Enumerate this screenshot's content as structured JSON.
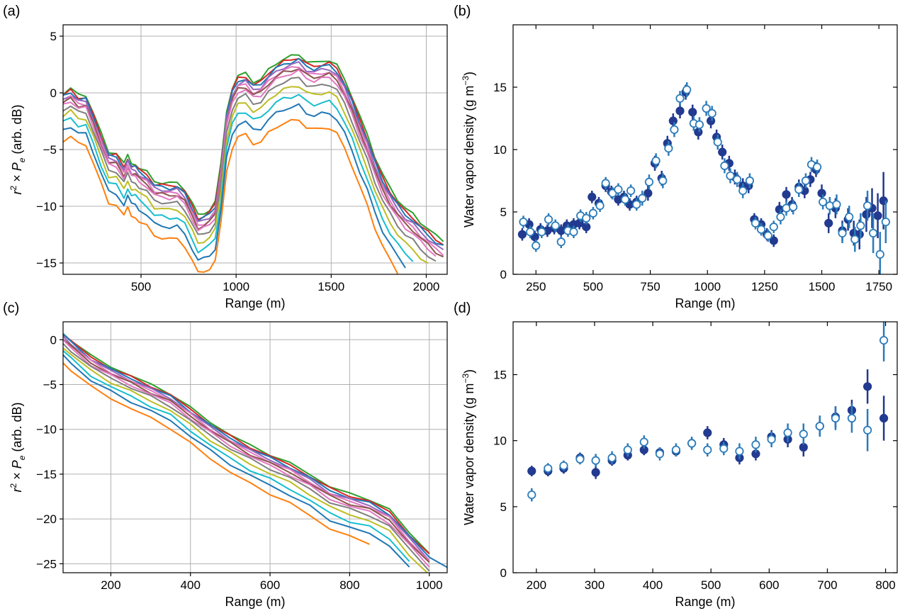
{
  "chart_data": [
    {
      "panel": "(a)",
      "type": "line",
      "xlabel": "Range (m)",
      "ylabel": "r² × P_e (arb. dB)",
      "xlim": [
        90,
        2110
      ],
      "ylim": [
        -16,
        6
      ],
      "xticks": [
        500,
        1000,
        1500,
        2000
      ],
      "yticks": [
        5,
        0,
        -5,
        -10,
        -15
      ],
      "grid": true,
      "base_x": [
        90,
        130,
        170,
        210,
        250,
        290,
        330,
        370,
        410,
        430,
        450,
        470,
        490,
        530,
        570,
        610,
        650,
        690,
        730,
        770,
        800,
        830,
        860,
        890,
        920,
        950,
        980,
        1010,
        1050,
        1090,
        1130,
        1170,
        1210,
        1250,
        1290,
        1330,
        1370,
        1410,
        1450,
        1490,
        1530,
        1570,
        1610,
        1650,
        1690,
        1730,
        1770,
        1810,
        1850,
        1890,
        1930,
        1970,
        2010,
        2050,
        2090
      ],
      "base_y": [
        0,
        0.4,
        -0.2,
        -0.2,
        -1.8,
        -3.6,
        -5.2,
        -5.3,
        -6.3,
        -5.5,
        -6.2,
        -6.2,
        -6.6,
        -7.0,
        -7.8,
        -7.9,
        -8.0,
        -7.9,
        -8.5,
        -9.8,
        -10.8,
        -10.6,
        -10.3,
        -9.6,
        -6.3,
        -1.6,
        0.5,
        1.5,
        1.7,
        1.0,
        1.2,
        2.0,
        2.6,
        3.0,
        3.2,
        3.4,
        2.8,
        2.6,
        2.8,
        2.9,
        2.4,
        1.2,
        -0.3,
        -2.1,
        -3.7,
        -5.6,
        -7.2,
        -8.4,
        -9.4,
        -10.2,
        -10.7,
        -11.4,
        -12.0,
        -12.6,
        -13.0
      ],
      "series": [
        {
          "color": "#2ca02c",
          "offset": 0.0,
          "end": 2110
        },
        {
          "color": "#d62728",
          "offset": -0.2,
          "end": 2110
        },
        {
          "color": "#1f77b4",
          "offset": -0.35,
          "end": 2110
        },
        {
          "color": "#9467bd",
          "offset": -0.55,
          "end": 2090
        },
        {
          "color": "#e377c2",
          "offset": -0.75,
          "end": 2110
        },
        {
          "color": "#8c564b",
          "offset": -0.9,
          "end": 2100
        },
        {
          "color": "#e377c2",
          "offset": -1.1,
          "end": 2080
        },
        {
          "color": "#7f7f7f",
          "offset": -1.5,
          "end": 2050
        },
        {
          "color": "#bcbd22",
          "offset": -2.0,
          "end": 2020
        },
        {
          "color": "#17becf",
          "offset": -2.6,
          "end": 1960
        },
        {
          "color": "#1f77b4",
          "offset": -3.3,
          "end": 1890
        },
        {
          "color": "#ff7f0e",
          "offset": -4.2,
          "end": 1870
        }
      ]
    },
    {
      "panel": "(b)",
      "type": "scatter",
      "xlabel": "Range (m)",
      "ylabel": "Water vapor density (g m⁻³)",
      "xlim": [
        150,
        1830
      ],
      "ylim": [
        0,
        20
      ],
      "xticks": [
        250,
        500,
        750,
        1000,
        1250,
        1500,
        1750
      ],
      "yticks": [
        0,
        5,
        10,
        15
      ],
      "grid": false,
      "filled_points": [
        [
          190,
          3.2,
          0.5
        ],
        [
          220,
          4.0,
          0.5
        ],
        [
          245,
          3.0,
          0.5
        ],
        [
          270,
          3.6,
          0.5
        ],
        [
          300,
          3.5,
          0.5
        ],
        [
          330,
          3.7,
          0.5
        ],
        [
          360,
          3.5,
          0.5
        ],
        [
          385,
          3.9,
          0.5
        ],
        [
          415,
          4.0,
          0.5
        ],
        [
          440,
          4.1,
          0.5
        ],
        [
          470,
          3.8,
          0.5
        ],
        [
          495,
          6.2,
          0.5
        ],
        [
          525,
          5.7,
          0.5
        ],
        [
          555,
          7.1,
          0.5
        ],
        [
          580,
          6.6,
          0.5
        ],
        [
          610,
          6.0,
          0.5
        ],
        [
          635,
          6.2,
          0.5
        ],
        [
          660,
          5.6,
          0.5
        ],
        [
          690,
          5.8,
          0.5
        ],
        [
          740,
          6.5,
          0.6
        ],
        [
          770,
          8.9,
          0.6
        ],
        [
          800,
          7.7,
          0.6
        ],
        [
          825,
          10.5,
          0.6
        ],
        [
          850,
          12.3,
          0.6
        ],
        [
          880,
          13.1,
          0.6
        ],
        [
          905,
          14.6,
          0.6
        ],
        [
          935,
          13.0,
          0.6
        ],
        [
          960,
          11.4,
          0.6
        ],
        [
          1015,
          12.3,
          0.6
        ],
        [
          1040,
          11.0,
          0.6
        ],
        [
          1065,
          9.8,
          0.6
        ],
        [
          1095,
          8.9,
          0.6
        ],
        [
          1120,
          7.8,
          0.6
        ],
        [
          1155,
          7.1,
          0.6
        ],
        [
          1180,
          7.1,
          0.6
        ],
        [
          1205,
          4.4,
          0.5
        ],
        [
          1235,
          4.0,
          0.5
        ],
        [
          1260,
          3.2,
          0.5
        ],
        [
          1290,
          2.7,
          0.5
        ],
        [
          1315,
          5.2,
          0.6
        ],
        [
          1345,
          6.4,
          0.6
        ],
        [
          1370,
          5.6,
          0.6
        ],
        [
          1400,
          7.0,
          0.6
        ],
        [
          1425,
          6.7,
          0.6
        ],
        [
          1450,
          7.6,
          0.6
        ],
        [
          1475,
          8.4,
          0.6
        ],
        [
          1500,
          6.5,
          0.7
        ],
        [
          1530,
          4.1,
          0.8
        ],
        [
          1560,
          5.3,
          0.8
        ],
        [
          1590,
          3.5,
          0.8
        ],
        [
          1615,
          4.4,
          0.9
        ],
        [
          1640,
          3.3,
          1.0
        ],
        [
          1665,
          3.2,
          1.2
        ],
        [
          1695,
          4.8,
          1.4
        ],
        [
          1720,
          5.3,
          1.6
        ],
        [
          1745,
          4.7,
          1.8
        ],
        [
          1770,
          5.9,
          2.3
        ]
      ],
      "open_points": [
        [
          195,
          4.2,
          0.5
        ],
        [
          225,
          3.4,
          0.5
        ],
        [
          250,
          2.3,
          0.5
        ],
        [
          275,
          3.4,
          0.5
        ],
        [
          305,
          4.4,
          0.5
        ],
        [
          335,
          3.9,
          0.5
        ],
        [
          360,
          2.6,
          0.5
        ],
        [
          390,
          3.5,
          0.5
        ],
        [
          415,
          3.4,
          0.5
        ],
        [
          445,
          4.7,
          0.5
        ],
        [
          470,
          4.5,
          0.5
        ],
        [
          500,
          4.9,
          0.5
        ],
        [
          530,
          5.5,
          0.5
        ],
        [
          555,
          7.3,
          0.5
        ],
        [
          585,
          6.5,
          0.5
        ],
        [
          610,
          6.8,
          0.5
        ],
        [
          640,
          6.0,
          0.5
        ],
        [
          665,
          6.7,
          0.5
        ],
        [
          690,
          5.6,
          0.5
        ],
        [
          715,
          6.1,
          0.6
        ],
        [
          745,
          7.4,
          0.6
        ],
        [
          775,
          9.1,
          0.6
        ],
        [
          805,
          7.5,
          0.6
        ],
        [
          830,
          10.1,
          0.6
        ],
        [
          855,
          11.6,
          0.6
        ],
        [
          880,
          14.1,
          0.6
        ],
        [
          910,
          14.8,
          0.6
        ],
        [
          940,
          12.1,
          0.6
        ],
        [
          965,
          12.0,
          0.6
        ],
        [
          995,
          13.3,
          0.6
        ],
        [
          1020,
          12.9,
          0.6
        ],
        [
          1045,
          10.6,
          0.6
        ],
        [
          1075,
          8.7,
          0.6
        ],
        [
          1100,
          7.9,
          0.6
        ],
        [
          1130,
          7.6,
          0.6
        ],
        [
          1155,
          6.7,
          0.6
        ],
        [
          1185,
          7.5,
          0.6
        ],
        [
          1210,
          4.1,
          0.5
        ],
        [
          1235,
          3.6,
          0.5
        ],
        [
          1265,
          3.1,
          0.5
        ],
        [
          1290,
          3.8,
          0.5
        ],
        [
          1320,
          4.6,
          0.6
        ],
        [
          1345,
          5.3,
          0.6
        ],
        [
          1375,
          5.4,
          0.6
        ],
        [
          1400,
          6.8,
          0.6
        ],
        [
          1430,
          7.5,
          0.6
        ],
        [
          1455,
          8.8,
          0.6
        ],
        [
          1480,
          8.6,
          0.6
        ],
        [
          1505,
          5.8,
          0.6
        ],
        [
          1535,
          5.5,
          0.7
        ],
        [
          1565,
          5.6,
          0.8
        ],
        [
          1590,
          3.3,
          0.8
        ],
        [
          1620,
          4.6,
          0.9
        ],
        [
          1645,
          2.8,
          1.0
        ],
        [
          1670,
          3.9,
          1.0
        ],
        [
          1700,
          5.5,
          1.2
        ],
        [
          1725,
          3.3,
          1.6
        ],
        [
          1755,
          1.6,
          1.8
        ],
        [
          1780,
          4.2,
          1.7
        ]
      ]
    },
    {
      "panel": "(c)",
      "type": "line",
      "xlabel": "Range (m)",
      "ylabel": "r² × P_e (arb. dB)",
      "xlim": [
        80,
        1045
      ],
      "ylim": [
        -26,
        2
      ],
      "xticks": [
        200,
        400,
        600,
        800,
        1000
      ],
      "yticks": [
        0,
        -5,
        -10,
        -15,
        -20,
        -25
      ],
      "grid": true,
      "base_x": [
        80,
        100,
        150,
        200,
        250,
        300,
        350,
        400,
        450,
        500,
        550,
        600,
        650,
        700,
        750,
        800,
        850,
        900,
        950,
        1000,
        1045
      ],
      "base_y": [
        0.8,
        0,
        -1.8,
        -3.0,
        -4.0,
        -5.0,
        -6.0,
        -7.6,
        -9.2,
        -10.6,
        -11.8,
        -12.8,
        -13.8,
        -15.0,
        -16.4,
        -17.2,
        -17.8,
        -19.0,
        -21.5,
        -23.8,
        -24.8
      ],
      "series": [
        {
          "color": "#2ca02c",
          "offset": 0.0,
          "end": 1040
        },
        {
          "color": "#d62728",
          "offset": -0.15,
          "end": 1035
        },
        {
          "color": "#1f77b4",
          "offset": -0.3,
          "end": 1045
        },
        {
          "color": "#9467bd",
          "offset": -0.45,
          "end": 1030
        },
        {
          "color": "#e377c2",
          "offset": -0.6,
          "end": 1025
        },
        {
          "color": "#8c564b",
          "offset": -0.75,
          "end": 1020
        },
        {
          "color": "#e377c2",
          "offset": -0.95,
          "end": 1035
        },
        {
          "color": "#7f7f7f",
          "offset": -1.2,
          "end": 1010
        },
        {
          "color": "#bcbd22",
          "offset": -1.6,
          "end": 1000
        },
        {
          "color": "#17becf",
          "offset": -2.1,
          "end": 980
        },
        {
          "color": "#1f77b4",
          "offset": -2.6,
          "end": 960
        },
        {
          "color": "#ff7f0e",
          "offset": -3.3,
          "end": 890
        }
      ]
    },
    {
      "panel": "(d)",
      "type": "scatter",
      "xlabel": "Range (m)",
      "ylabel": "Water vapor density (g m⁻³)",
      "xlim": [
        160,
        820
      ],
      "ylim": [
        0,
        19
      ],
      "xticks": [
        200,
        300,
        400,
        500,
        600,
        700,
        800
      ],
      "yticks": [
        0,
        5,
        10,
        15
      ],
      "grid": false,
      "filled_points": [
        [
          192,
          7.7,
          0.4
        ],
        [
          220,
          7.7,
          0.4
        ],
        [
          247,
          7.9,
          0.4
        ],
        [
          275,
          8.7,
          0.4
        ],
        [
          302,
          7.6,
          0.5
        ],
        [
          330,
          8.5,
          0.4
        ],
        [
          357,
          8.9,
          0.4
        ],
        [
          385,
          9.3,
          0.4
        ],
        [
          412,
          9.1,
          0.4
        ],
        [
          440,
          9.2,
          0.4
        ],
        [
          467,
          9.8,
          0.4
        ],
        [
          494,
          10.6,
          0.5
        ],
        [
          522,
          9.7,
          0.5
        ],
        [
          549,
          8.7,
          0.5
        ],
        [
          577,
          9.0,
          0.5
        ],
        [
          604,
          10.3,
          0.5
        ],
        [
          632,
          10.1,
          0.6
        ],
        [
          659,
          9.5,
          0.7
        ],
        [
          687,
          11.1,
          0.7
        ],
        [
          714,
          11.8,
          0.8
        ],
        [
          742,
          12.3,
          0.8
        ],
        [
          769,
          14.1,
          1.3
        ],
        [
          797,
          11.7,
          1.7
        ]
      ],
      "open_points": [
        [
          192,
          5.9,
          0.5
        ],
        [
          220,
          7.9,
          0.4
        ],
        [
          247,
          8.1,
          0.4
        ],
        [
          275,
          8.6,
          0.4
        ],
        [
          302,
          8.5,
          0.5
        ],
        [
          330,
          8.7,
          0.5
        ],
        [
          357,
          9.3,
          0.5
        ],
        [
          385,
          9.9,
          0.5
        ],
        [
          412,
          9.0,
          0.5
        ],
        [
          440,
          9.3,
          0.5
        ],
        [
          467,
          9.8,
          0.5
        ],
        [
          494,
          9.3,
          0.5
        ],
        [
          522,
          9.4,
          0.5
        ],
        [
          549,
          9.2,
          0.6
        ],
        [
          577,
          9.7,
          0.6
        ],
        [
          604,
          10.1,
          0.6
        ],
        [
          632,
          10.6,
          0.7
        ],
        [
          659,
          10.5,
          0.8
        ],
        [
          687,
          11.1,
          0.8
        ],
        [
          714,
          11.7,
          0.9
        ],
        [
          742,
          11.7,
          1.1
        ],
        [
          769,
          10.8,
          1.6
        ],
        [
          797,
          17.6,
          1.6
        ]
      ]
    }
  ],
  "colors": {
    "filled_marker": "#223a8f",
    "open_marker_edge": "#2b7bba",
    "grid": "#b0b0b0"
  }
}
